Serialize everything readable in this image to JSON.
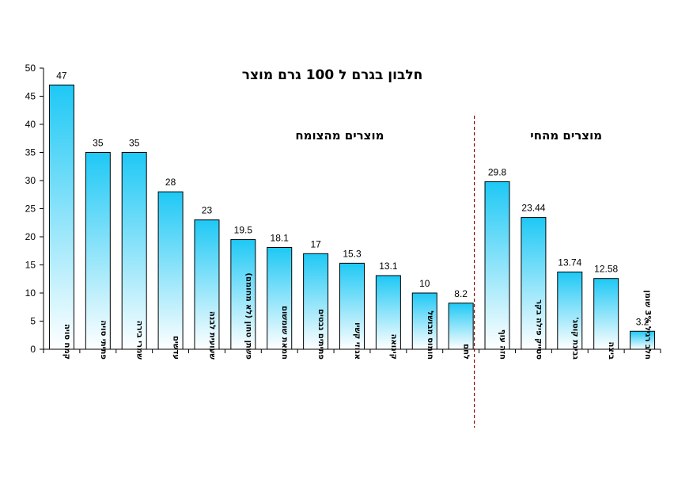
{
  "chart_data": {
    "type": "bar",
    "title": "חלבון בגרם ל 100 גרם מוצר",
    "categories": [
      "קמח סויה",
      "פתיתי סויה",
      "שמרי בירה",
      "עדשים",
      "שעועית לבנה",
      "פשתן טחון (לא מחומם)",
      "חמאת שומשום",
      "פתיתים נבטים",
      "אגוזי קשיו",
      "קינואה",
      "חומוס מבושל",
      "לחם",
      "חזה עוף",
      "סטייק פילה בקר",
      "גבינת קוטג'",
      "ביצה",
      "חלב רגיל 3% שומן"
    ],
    "values": [
      47,
      35,
      35,
      28,
      23,
      19.5,
      18.1,
      17,
      15.3,
      13.1,
      10,
      8.2,
      29.8,
      23.44,
      13.74,
      12.58,
      3.2
    ],
    "value_labels": [
      "47",
      "35",
      "35",
      "28",
      "23",
      "19.5",
      "18.1",
      "17",
      "15.3",
      "13.1",
      "10",
      "8.2",
      "29.8",
      "23.44",
      "13.74",
      "12.58",
      "3.2"
    ],
    "y_ticks": [
      "0",
      "5",
      "10",
      "15",
      "20",
      "25",
      "30",
      "35",
      "40",
      "45",
      "50"
    ],
    "ylim": [
      0,
      50
    ],
    "xlabel": "",
    "ylabel": "",
    "grid": false,
    "groups": [
      {
        "label": "מוצרים מהצומח",
        "count": 12
      },
      {
        "label": "מוצרים מהחי",
        "count": 5
      }
    ],
    "colors": {
      "bar_top": "#1ec8f5",
      "bar_bottom": "#ffffff",
      "bar_stroke": "#000000",
      "divider": "#8b0000"
    }
  }
}
